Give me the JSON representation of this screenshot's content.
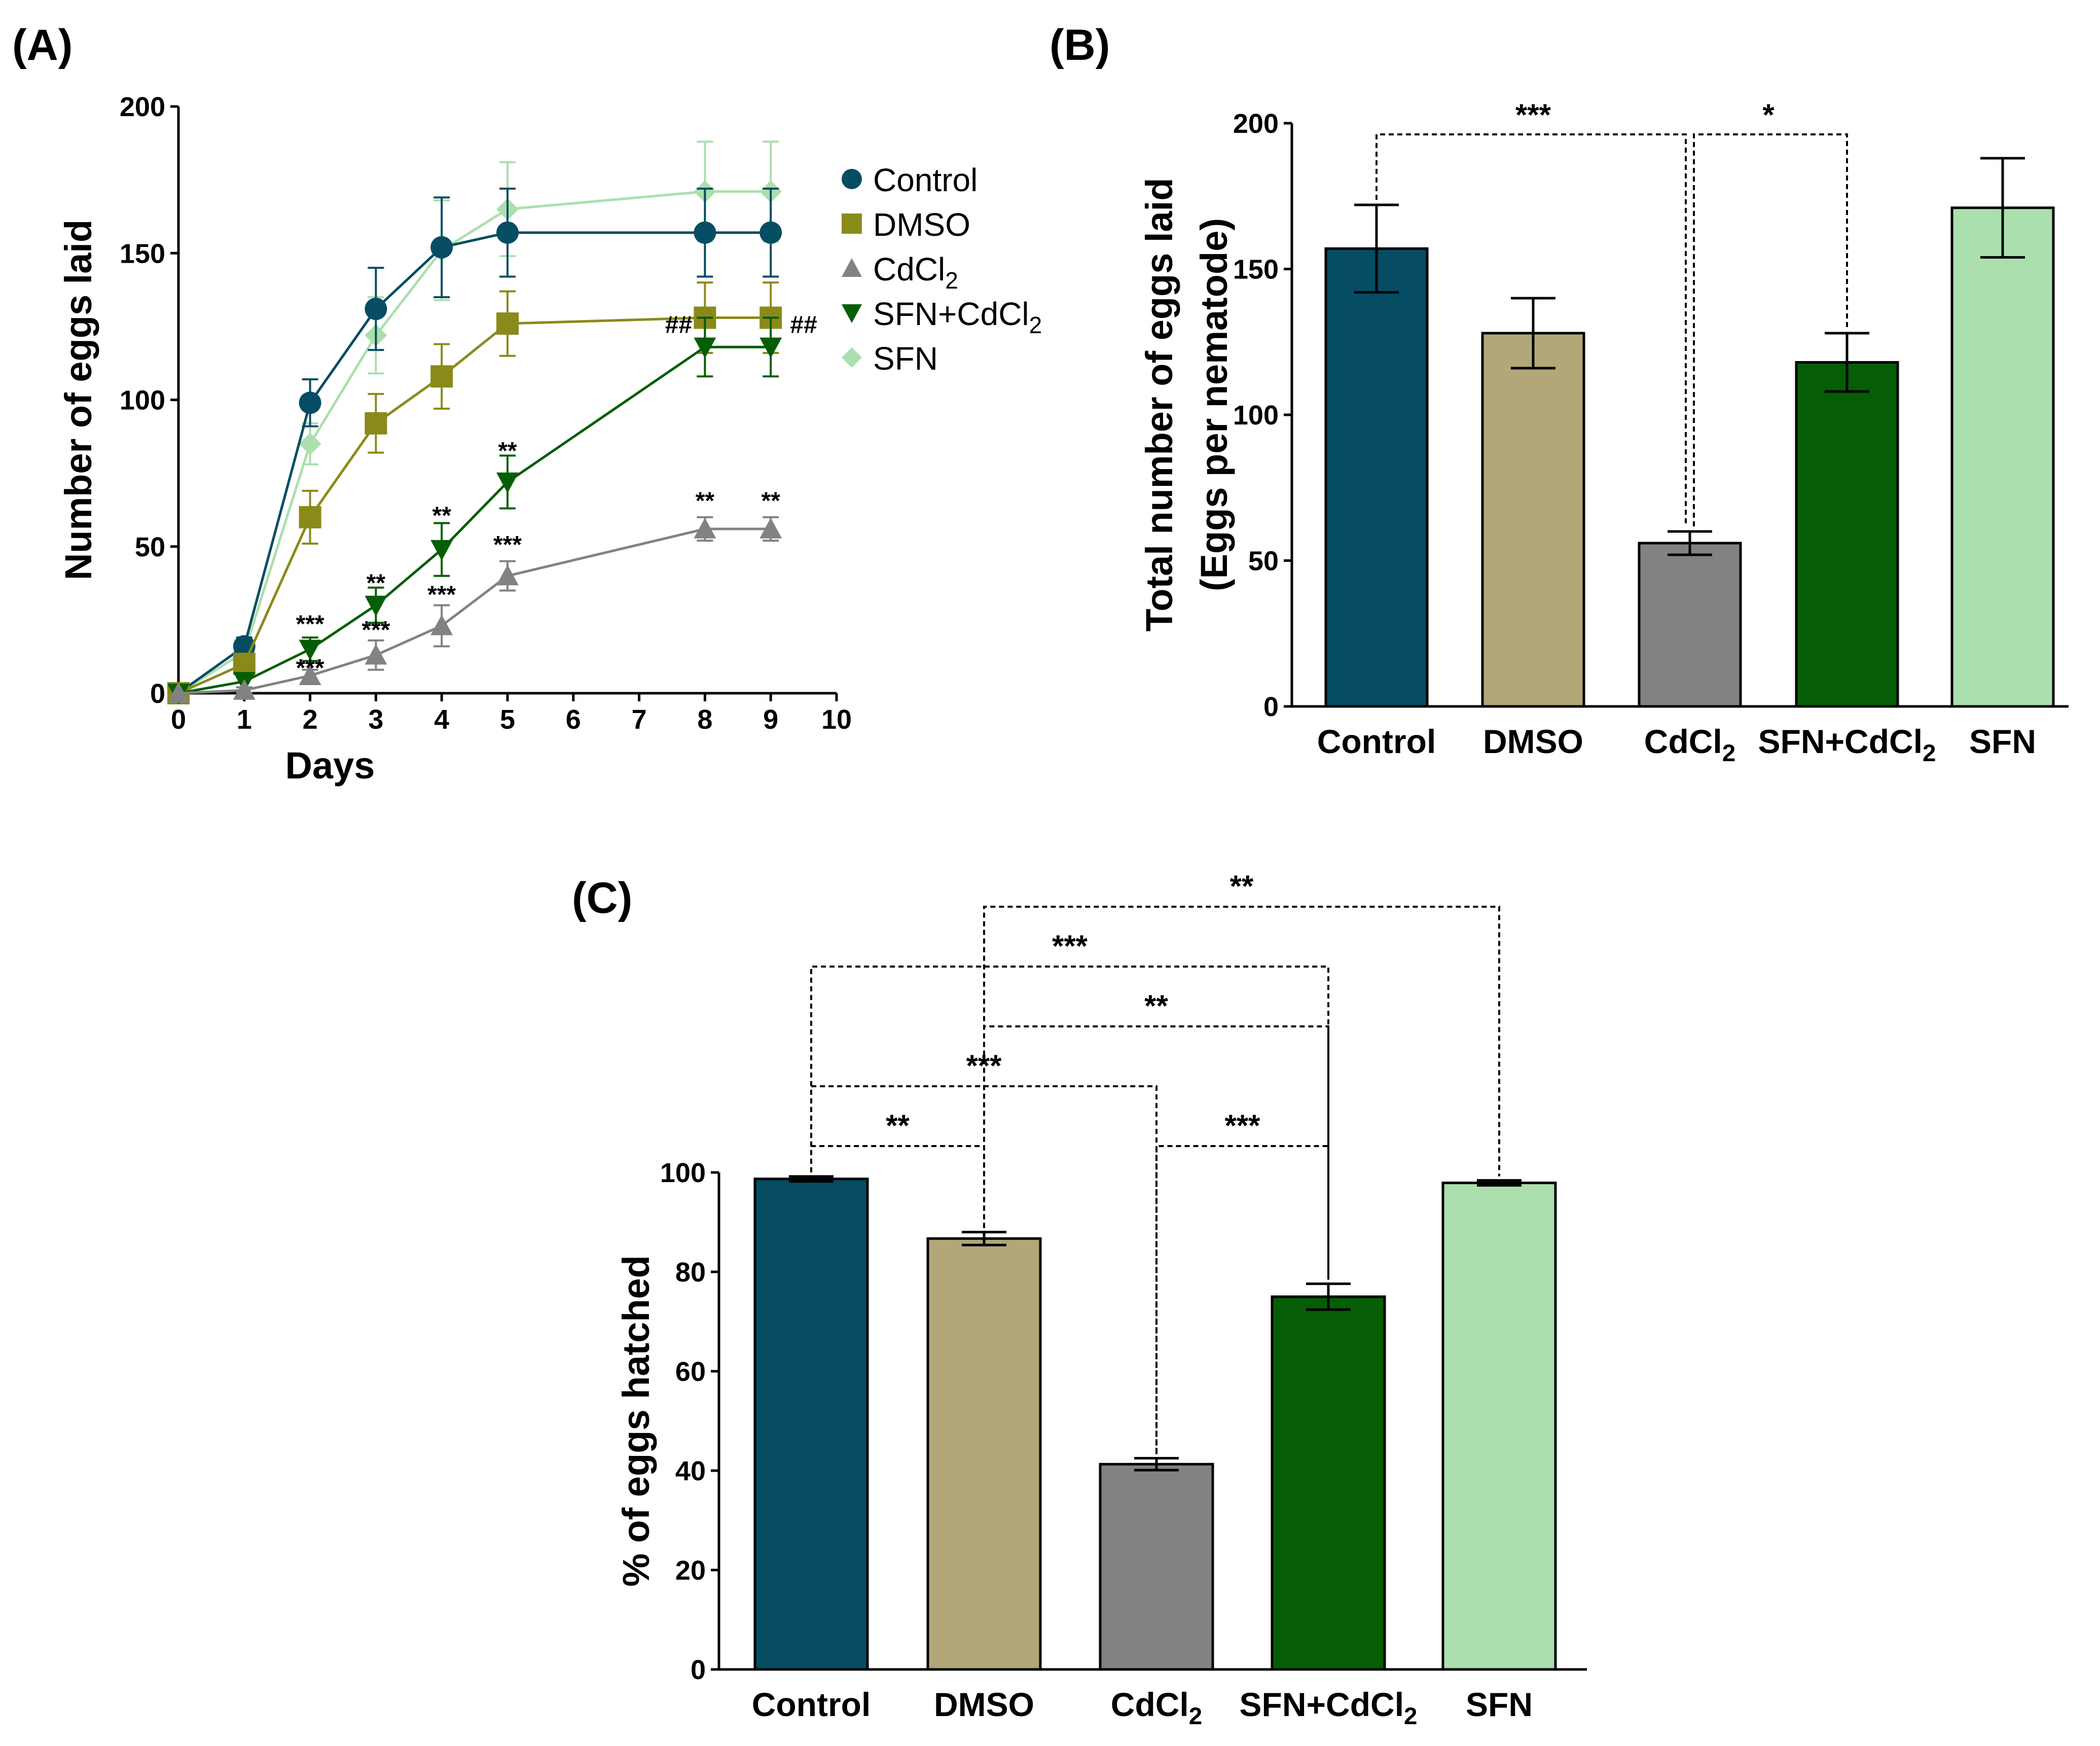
{
  "colors": {
    "Control": "#064d63",
    "DMSO": "#b1a779",
    "DMSO_line": "#8a8a1a",
    "CdCl2": "#828282",
    "SFN+CdCl2": "#055e05",
    "SFN": "#abdfad",
    "SFN_line": "#abdfad"
  },
  "chart_data": [
    {
      "panel": "(A)",
      "type": "line",
      "xlabel": "Days",
      "ylabel": "Number of eggs laid",
      "xlim": [
        0,
        10
      ],
      "ylim": [
        0,
        200
      ],
      "xticks": [
        "0",
        "1",
        "2",
        "3",
        "4",
        "5",
        "6",
        "7",
        "8",
        "9",
        "10"
      ],
      "yticks": [
        "0",
        "50",
        "100",
        "150",
        "200"
      ],
      "legend": {
        "placement": "right",
        "entries": [
          {
            "label": "Control",
            "marker": "circle",
            "color": "#064d63"
          },
          {
            "label": "DMSO",
            "marker": "square",
            "color": "#8a8a1a"
          },
          {
            "label": "CdCl",
            "sub": "2",
            "marker": "triangle-up",
            "color": "#828282"
          },
          {
            "label": "SFN+CdCl",
            "sub": "2",
            "marker": "triangle-down",
            "color": "#055e05"
          },
          {
            "label": "SFN",
            "marker": "diamond",
            "color": "#abdfad"
          }
        ]
      },
      "x": [
        0,
        1,
        2,
        3,
        4,
        5,
        8,
        9
      ],
      "series": [
        {
          "name": "Control",
          "values": [
            0,
            16,
            99,
            131,
            152,
            157,
            157,
            157
          ],
          "errors": [
            0,
            3,
            8,
            14,
            17,
            15,
            15,
            15
          ]
        },
        {
          "name": "DMSO",
          "values": [
            0,
            10,
            60,
            92,
            108,
            126,
            128,
            128
          ],
          "errors": [
            0,
            3,
            9,
            10,
            11,
            11,
            12,
            12
          ]
        },
        {
          "name": "CdCl2",
          "values": [
            0,
            1,
            6,
            13,
            23,
            40,
            56,
            56
          ],
          "errors": [
            0,
            1,
            2,
            5,
            7,
            5,
            4,
            4
          ]
        },
        {
          "name": "SFN+CdCl2",
          "values": [
            0,
            4,
            15,
            30,
            49,
            72,
            118,
            118
          ],
          "errors": [
            0,
            2,
            4,
            6,
            9,
            9,
            10,
            10
          ]
        },
        {
          "name": "SFN",
          "values": [
            0,
            14,
            85,
            122,
            151,
            165,
            171,
            171
          ],
          "errors": [
            0,
            3,
            7,
            13,
            17,
            16,
            17,
            17
          ]
        }
      ],
      "annotations": [
        {
          "x": 2,
          "y": 16,
          "text": "***"
        },
        {
          "x": 2,
          "y": 1,
          "text": "***"
        },
        {
          "x": 3,
          "y": 30,
          "text": "**"
        },
        {
          "x": 3,
          "y": 14,
          "text": "***"
        },
        {
          "x": 4,
          "y": 53,
          "text": "**"
        },
        {
          "x": 4,
          "y": 26,
          "text": "***"
        },
        {
          "x": 5,
          "y": 75,
          "text": "**"
        },
        {
          "x": 5,
          "y": 43,
          "text": "***"
        },
        {
          "x": 8,
          "y": 58,
          "text": "**"
        },
        {
          "x": 9,
          "y": 58,
          "text": "**"
        },
        {
          "x": 7.6,
          "y": 118,
          "text": "##"
        },
        {
          "x": 9.5,
          "y": 118,
          "text": "##"
        }
      ]
    },
    {
      "panel": "(B)",
      "type": "bar",
      "ylabel": "Total number of eggs laid",
      "ylabel2": "(Eggs per nematode)",
      "ylim": [
        0,
        200
      ],
      "yticks": [
        "0",
        "50",
        "100",
        "150",
        "200"
      ],
      "categories": [
        {
          "label": "Control"
        },
        {
          "label": "DMSO"
        },
        {
          "label": "CdCl",
          "sub": "2"
        },
        {
          "label": "SFN+CdCl",
          "sub": "2"
        },
        {
          "label": "SFN"
        }
      ],
      "values": [
        157,
        128,
        56,
        118,
        171
      ],
      "errors": [
        15,
        12,
        4,
        10,
        17
      ],
      "significance": [
        {
          "from": 0,
          "to": 2,
          "text": "***"
        },
        {
          "from": 2,
          "to": 3,
          "text": "*"
        }
      ]
    },
    {
      "panel": "(C)",
      "type": "bar",
      "ylabel": "% of eggs hatched",
      "ylim": [
        0,
        100
      ],
      "yticks": [
        "0",
        "20",
        "40",
        "60",
        "80",
        "100"
      ],
      "categories": [
        {
          "label": "Control"
        },
        {
          "label": "DMSO"
        },
        {
          "label": "CdCl",
          "sub": "2"
        },
        {
          "label": "SFN+CdCl",
          "sub": "2"
        },
        {
          "label": "SFN"
        }
      ],
      "values": [
        98.7,
        86.7,
        41.3,
        75.0,
        97.9
      ],
      "errors": [
        0.5,
        1.3,
        1.2,
        2.6,
        0.5
      ],
      "significance": [
        {
          "from": 0,
          "to": 1,
          "text": "**"
        },
        {
          "from": 2,
          "to": 3,
          "text": "***"
        },
        {
          "from": 0,
          "to": 2,
          "text": "***"
        },
        {
          "from": 1,
          "to": 3,
          "text": "**"
        },
        {
          "from": 0,
          "to": 3,
          "text": "***"
        },
        {
          "from": 1,
          "to": 4,
          "text": "**"
        }
      ]
    }
  ]
}
